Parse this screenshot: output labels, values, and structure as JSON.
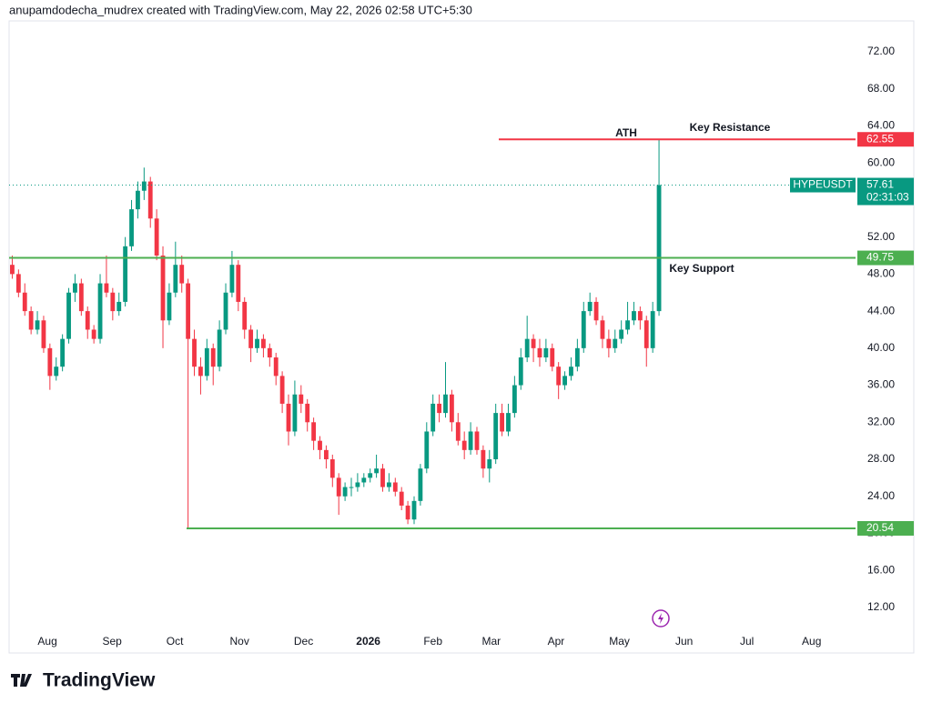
{
  "header": "anupamdodecha_mudrex created with TradingView.com, May 22, 2026 02:58 UTC+5:30",
  "footer_logo": "TradingView",
  "chart_data": {
    "type": "candlestick",
    "symbol": "HYPEUSDT",
    "countdown": "02:31:03",
    "up_color": "#089981",
    "down_color": "#f23645",
    "ylim": [
      9.44,
      75.34
    ],
    "yticks": [
      {
        "value": 12,
        "label": "12.00"
      },
      {
        "value": 16,
        "label": "16.00"
      },
      {
        "value": 20,
        "label": "20.00"
      },
      {
        "value": 24,
        "label": "24.00"
      },
      {
        "value": 28,
        "label": "28.00"
      },
      {
        "value": 32,
        "label": "32.00"
      },
      {
        "value": 36,
        "label": "36.00"
      },
      {
        "value": 40,
        "label": "40.00"
      },
      {
        "value": 44,
        "label": "44.00"
      },
      {
        "value": 48,
        "label": "48.00"
      },
      {
        "value": 52,
        "label": "52.00"
      },
      {
        "value": 56,
        "label": "56.00"
      },
      {
        "value": 60,
        "label": "60.00"
      },
      {
        "value": 64,
        "label": "64.00"
      },
      {
        "value": 68,
        "label": "68.00"
      },
      {
        "value": 72,
        "label": "72.00"
      }
    ],
    "xlim": [
      -0.5,
      134.3
    ],
    "xticks": [
      {
        "value": 5.6,
        "label": "Aug"
      },
      {
        "value": 15.9,
        "label": "Sep"
      },
      {
        "value": 25.9,
        "label": "Oct"
      },
      {
        "value": 36.2,
        "label": "Nov"
      },
      {
        "value": 46.4,
        "label": "Dec"
      },
      {
        "value": 56.7,
        "label": "2026"
      },
      {
        "value": 67,
        "label": "Feb"
      },
      {
        "value": 76.3,
        "label": "Mar"
      },
      {
        "value": 86.6,
        "label": "Apr"
      },
      {
        "value": 96.7,
        "label": "May"
      },
      {
        "value": 107,
        "label": "Jun"
      },
      {
        "value": 117,
        "label": "Jul"
      },
      {
        "value": 127.3,
        "label": "Aug"
      }
    ],
    "candles": [
      [
        49,
        50,
        47.5,
        48
      ],
      [
        48,
        48.5,
        45.5,
        46
      ],
      [
        46,
        47,
        43.5,
        44
      ],
      [
        44,
        44.5,
        41.5,
        42
      ],
      [
        42,
        44,
        41.5,
        43
      ],
      [
        43,
        43.5,
        39.5,
        40
      ],
      [
        40,
        40.5,
        35.5,
        37
      ],
      [
        37,
        39,
        36.5,
        38
      ],
      [
        38,
        41.5,
        37.5,
        41
      ],
      [
        41,
        46.5,
        40.5,
        46
      ],
      [
        46,
        48,
        45,
        47
      ],
      [
        47,
        47.5,
        43.5,
        44
      ],
      [
        44,
        44.5,
        41,
        42
      ],
      [
        42,
        42.5,
        40.5,
        41
      ],
      [
        41,
        48,
        40.5,
        47
      ],
      [
        47,
        50,
        45.5,
        46
      ],
      [
        46,
        46.5,
        43,
        44
      ],
      [
        44,
        46,
        43.5,
        45
      ],
      [
        45,
        52,
        44.5,
        51
      ],
      [
        51,
        56,
        50.5,
        55
      ],
      [
        55,
        58,
        54,
        57
      ],
      [
        57,
        59.5,
        56,
        58
      ],
      [
        58,
        58.5,
        53,
        54
      ],
      [
        54,
        55,
        49.5,
        50
      ],
      [
        50,
        51,
        40,
        43
      ],
      [
        43,
        47,
        42.5,
        46
      ],
      [
        46,
        51.5,
        45.5,
        49
      ],
      [
        49,
        50,
        46,
        47
      ],
      [
        47,
        47.5,
        20.54,
        41
      ],
      [
        41,
        42,
        37,
        38
      ],
      [
        38,
        39,
        35,
        37
      ],
      [
        37,
        41,
        36.5,
        40
      ],
      [
        40,
        40.5,
        36,
        38
      ],
      [
        38,
        43,
        37.5,
        42
      ],
      [
        42,
        47,
        41.5,
        46
      ],
      [
        46,
        50.5,
        45.5,
        49
      ],
      [
        49,
        49.5,
        44,
        45
      ],
      [
        45,
        45.5,
        41,
        42
      ],
      [
        42,
        42.5,
        38.5,
        40
      ],
      [
        40,
        42,
        39.5,
        41
      ],
      [
        41,
        41.5,
        39,
        40
      ],
      [
        40,
        40.5,
        38,
        39
      ],
      [
        39,
        39.5,
        36,
        37
      ],
      [
        37,
        37.5,
        33,
        34
      ],
      [
        34,
        35,
        29.5,
        31
      ],
      [
        31,
        36.5,
        30.5,
        35
      ],
      [
        35,
        36,
        33,
        34
      ],
      [
        34,
        34.5,
        31,
        32
      ],
      [
        32,
        32.5,
        29,
        30
      ],
      [
        30,
        30.5,
        28,
        29
      ],
      [
        29,
        29.5,
        27,
        28
      ],
      [
        28,
        28.5,
        25,
        26
      ],
      [
        26,
        26.5,
        22,
        24
      ],
      [
        24,
        25.5,
        23.5,
        25
      ],
      [
        25,
        26,
        24,
        25
      ],
      [
        25,
        26.5,
        24.5,
        25.5
      ],
      [
        25.5,
        26.5,
        25,
        26
      ],
      [
        26,
        27,
        25.5,
        26.5
      ],
      [
        26.5,
        28.5,
        26,
        27
      ],
      [
        27,
        27.5,
        24.5,
        25
      ],
      [
        25,
        26.5,
        24.5,
        25.5
      ],
      [
        25.5,
        26,
        24,
        24.5
      ],
      [
        24.5,
        25,
        22.5,
        23
      ],
      [
        23,
        23.5,
        21,
        21.5
      ],
      [
        21.5,
        24,
        21,
        23.5
      ],
      [
        23.5,
        27.5,
        23,
        27
      ],
      [
        27,
        32,
        26.5,
        31
      ],
      [
        31,
        35,
        30.5,
        34
      ],
      [
        34,
        35,
        32,
        33
      ],
      [
        33,
        38.5,
        32.5,
        35
      ],
      [
        35,
        35.5,
        31,
        32
      ],
      [
        32,
        33,
        29.5,
        30
      ],
      [
        30,
        31,
        28,
        29
      ],
      [
        29,
        32,
        28.5,
        31
      ],
      [
        31,
        31.5,
        28.5,
        29
      ],
      [
        29,
        29.5,
        26,
        27
      ],
      [
        27,
        29,
        25.5,
        28
      ],
      [
        28,
        34,
        27.5,
        33
      ],
      [
        33,
        34,
        30.5,
        31
      ],
      [
        31,
        34,
        30.5,
        33
      ],
      [
        33,
        37,
        32.5,
        36
      ],
      [
        36,
        40,
        35.5,
        39
      ],
      [
        39,
        43.5,
        38.5,
        41
      ],
      [
        41,
        41.5,
        38.5,
        40
      ],
      [
        40,
        41,
        38,
        39
      ],
      [
        39,
        41,
        38.5,
        40
      ],
      [
        40,
        40.5,
        37.5,
        38
      ],
      [
        38,
        38.5,
        34.5,
        36
      ],
      [
        36,
        37.5,
        35.5,
        37
      ],
      [
        37,
        39,
        36.5,
        38
      ],
      [
        38,
        41,
        37.5,
        40
      ],
      [
        40,
        45,
        39.5,
        44
      ],
      [
        44,
        46,
        43.5,
        45
      ],
      [
        45,
        45.5,
        42.5,
        43
      ],
      [
        43,
        43.5,
        40,
        41
      ],
      [
        41,
        42,
        39,
        40
      ],
      [
        40,
        42,
        39.5,
        41
      ],
      [
        41,
        43,
        40.5,
        42
      ],
      [
        42,
        45,
        41.5,
        43
      ],
      [
        43,
        45,
        42.5,
        44
      ],
      [
        44,
        44.5,
        42,
        43
      ],
      [
        43,
        43.5,
        38,
        40
      ],
      [
        40,
        45,
        39.5,
        44
      ],
      [
        44,
        62.55,
        43.5,
        57.61
      ]
    ],
    "levels": [
      {
        "value": 62.55,
        "color": "#f23645"
      },
      {
        "value": 49.75,
        "color": "#4caf50"
      },
      {
        "value": 20.54,
        "color": "#4caf50"
      }
    ],
    "annotations": [
      "ATH",
      "Key Resistance",
      "Key Support"
    ]
  }
}
